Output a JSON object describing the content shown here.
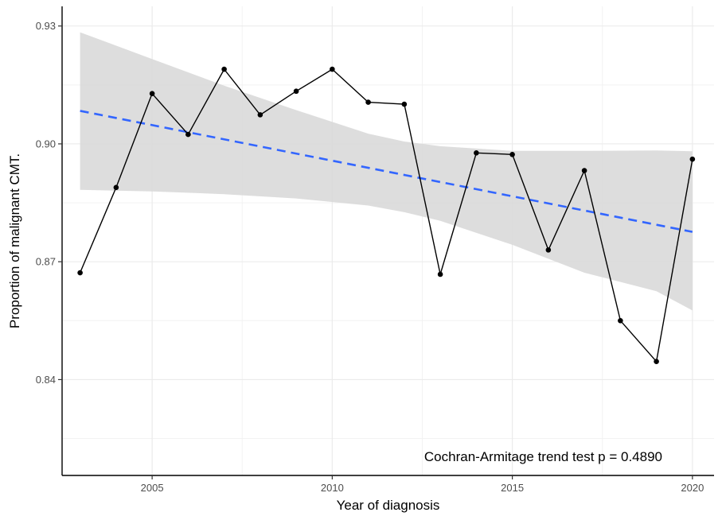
{
  "chart_data": {
    "type": "line",
    "xlabel": "Year of diagnosis",
    "ylabel": "Proportion of malignant CMT.",
    "xlim": [
      2002.5,
      2020.6
    ],
    "ylim": [
      0.8156,
      0.935
    ],
    "x_ticks": [
      {
        "value": 2005,
        "label": "2005"
      },
      {
        "value": 2010,
        "label": "2010"
      },
      {
        "value": 2015,
        "label": "2015"
      },
      {
        "value": 2020,
        "label": "2020"
      }
    ],
    "y_ticks": [
      {
        "value": 0.84,
        "label": "0.84"
      },
      {
        "value": 0.87,
        "label": "0.87"
      },
      {
        "value": 0.9,
        "label": "0.90"
      },
      {
        "value": 0.93,
        "label": "0.93"
      }
    ],
    "grid": true,
    "series": [
      {
        "style": "observed",
        "color": "#000000",
        "x": [
          2003,
          2004,
          2005,
          2006,
          2007,
          2008,
          2009,
          2010,
          2011,
          2012,
          2013,
          2014,
          2015,
          2016,
          2017,
          2018,
          2019,
          2020
        ],
        "y": [
          0.8672,
          0.8889,
          0.9128,
          0.9024,
          0.919,
          0.9074,
          0.9134,
          0.919,
          0.9106,
          0.9101,
          0.8668,
          0.8977,
          0.8973,
          0.873,
          0.8932,
          0.855,
          0.8446,
          0.8961
        ]
      },
      {
        "style": "linear fit",
        "color": "#3366ff",
        "dashed": true,
        "x": [
          2003,
          2020
        ],
        "y": [
          0.9084,
          0.8776
        ]
      }
    ],
    "confidence_band": {
      "color": "#d9d9d9",
      "x": [
        2003,
        2005,
        2007,
        2009,
        2011,
        2012,
        2013,
        2015,
        2017,
        2019,
        2020
      ],
      "lower": [
        0.8883,
        0.8879,
        0.8872,
        0.8861,
        0.8843,
        0.8826,
        0.8804,
        0.8743,
        0.8672,
        0.8625,
        0.8576
      ],
      "upper": [
        0.9284,
        0.9216,
        0.9148,
        0.9086,
        0.9026,
        0.9006,
        0.8994,
        0.8982,
        0.8982,
        0.8983,
        0.8981
      ]
    },
    "annotation": "Cochran-Armitage trend test p = 0.4890"
  }
}
